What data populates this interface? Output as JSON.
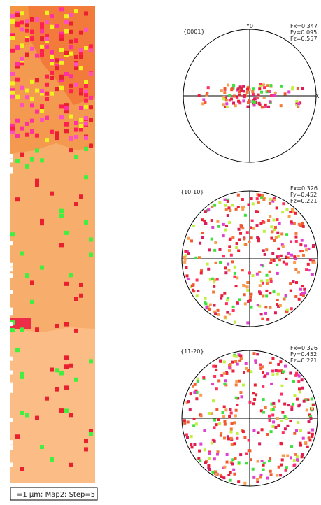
{
  "map": {
    "scale_label": "=1 µm; Map2; Step=5"
  },
  "pole_figures": [
    {
      "label": "{0001}",
      "axis_y": "Y0",
      "axis_x": "X",
      "factors": [
        "Fx=0.347",
        "Fy=0.095",
        "Fz=0.557"
      ]
    },
    {
      "label": "{10-10}",
      "factors": [
        "Fx=0.326",
        "Fy=0.452",
        "Fz=0.221"
      ]
    },
    {
      "label": "{11-20}",
      "factors": [
        "Fx=0.326",
        "Fy=0.452",
        "Fz=0.221"
      ]
    }
  ]
}
